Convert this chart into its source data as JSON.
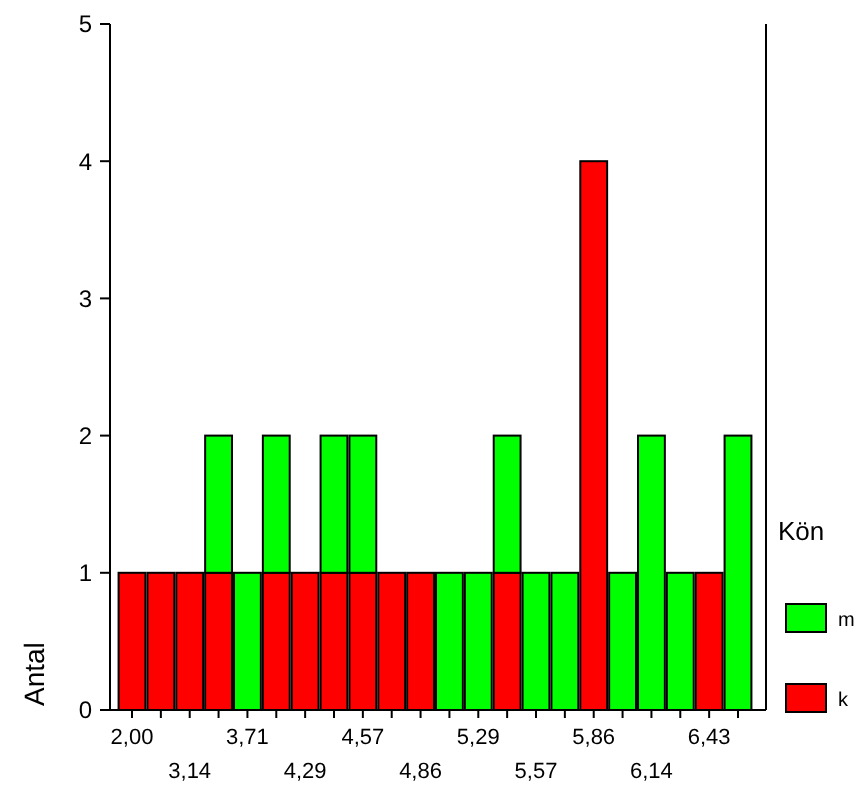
{
  "chart_data": {
    "type": "bar",
    "stacked": true,
    "ylabel": "Antal",
    "legend_title": "Kön",
    "legend": "right",
    "categories": [
      "2,00",
      null,
      "3,14",
      null,
      "3,71",
      null,
      "4,29",
      null,
      "4,57",
      null,
      "4,86",
      null,
      "5,29",
      null,
      "5,57",
      null,
      "5,86",
      null,
      "6,14",
      null,
      "6,43",
      null
    ],
    "series": [
      {
        "name": "k",
        "color": "#ff0000",
        "values": [
          1,
          1,
          1,
          1,
          0,
          1,
          1,
          1,
          1,
          1,
          1,
          0,
          0,
          1,
          0,
          0,
          4,
          0,
          0,
          0,
          1,
          0
        ]
      },
      {
        "name": "m",
        "color": "#00ff00",
        "values": [
          0,
          0,
          0,
          1,
          1,
          1,
          0,
          1,
          1,
          0,
          0,
          1,
          1,
          1,
          1,
          1,
          0,
          1,
          2,
          1,
          0,
          2
        ]
      }
    ],
    "ylim": [
      0,
      5
    ],
    "yticks": [
      0,
      1,
      2,
      3,
      4,
      5
    ],
    "grid": false
  }
}
